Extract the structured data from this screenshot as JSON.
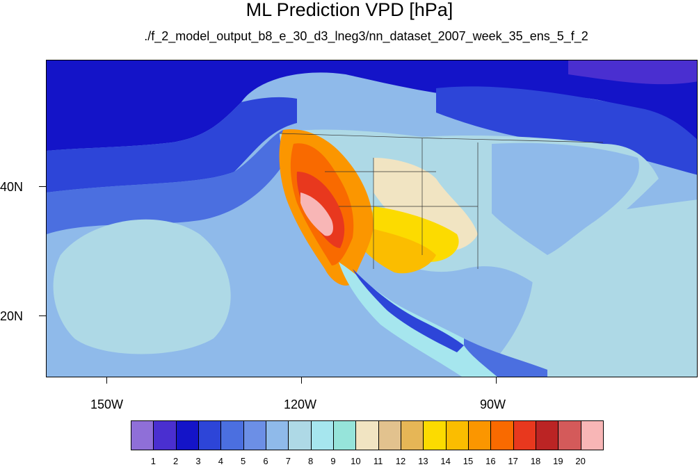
{
  "title": "ML Prediction VPD [hPa]",
  "subtitle": "./f_2_model_output_b8_e_30_d3_lneg3/nn_dataset_2007_week_35_ens_5_f_2",
  "axes": {
    "x_labels": [
      "150W",
      "120W",
      "90W"
    ],
    "y_labels": [
      "40N",
      "20N"
    ]
  },
  "colorbar": {
    "labels": [
      "1",
      "2",
      "3",
      "4",
      "5",
      "6",
      "7",
      "8",
      "9",
      "10",
      "11",
      "12",
      "13",
      "14",
      "15",
      "16",
      "17",
      "18",
      "19",
      "20"
    ],
    "colors": [
      "#8f6fd8",
      "#4a2fd0",
      "#1414c8",
      "#2d45d8",
      "#4b6fe0",
      "#6c8fe6",
      "#8fbaea",
      "#aed9e6",
      "#a6e6ee",
      "#96e4da",
      "#f1e4c2",
      "#e2c28e",
      "#e6b656",
      "#fcdb00",
      "#fbbd00",
      "#fb9600",
      "#f96a00",
      "#e8381e",
      "#bb2424",
      "#d45a5a",
      "#f8b6b6"
    ]
  },
  "chart_data": {
    "type": "heatmap",
    "title": "ML Prediction VPD [hPa]",
    "subtitle": "./f_2_model_output_b8_e_30_d3_lneg3/nn_dataset_2007_week_35_ens_5_f_2",
    "x_ticks": [
      "150W",
      "120W",
      "90W"
    ],
    "y_ticks": [
      "40N",
      "20N"
    ],
    "colorbar_levels": [
      1,
      2,
      3,
      4,
      5,
      6,
      7,
      8,
      9,
      10,
      11,
      12,
      13,
      14,
      15,
      16,
      17,
      18,
      19,
      20
    ]
  }
}
